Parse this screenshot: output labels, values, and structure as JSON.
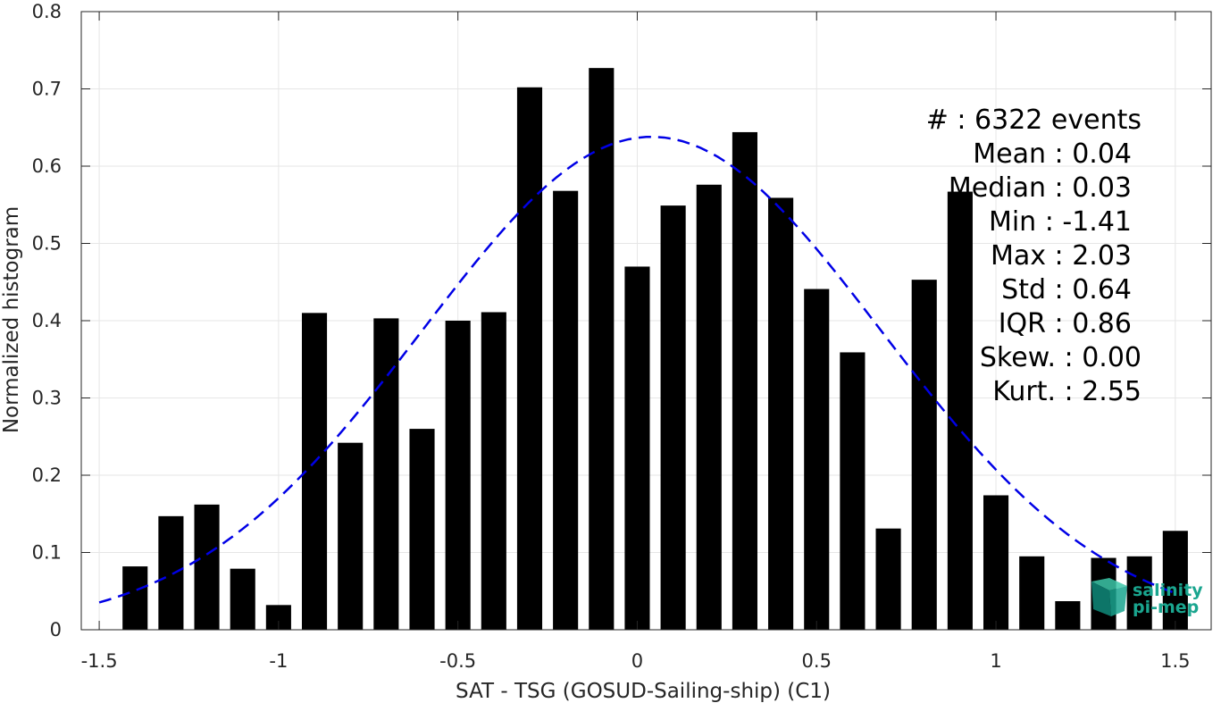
{
  "chart_data": {
    "type": "bar",
    "xlabel": "SAT - TSG (GOSUD-Sailing-ship) (C1)",
    "ylabel": "Normalized histogram",
    "xlim": [
      -1.55,
      1.6
    ],
    "ylim": [
      0,
      0.8
    ],
    "grid": true,
    "bar_width": 0.07,
    "x_ticks": [
      -1.5,
      -1,
      -0.5,
      0,
      0.5,
      1,
      1.5
    ],
    "x_tick_labels": [
      "-1.5",
      "-1",
      "-0.5",
      "0",
      "0.5",
      "1",
      "1.5"
    ],
    "y_ticks": [
      0,
      0.1,
      0.2,
      0.3,
      0.4,
      0.5,
      0.6,
      0.7,
      0.8
    ],
    "y_tick_labels": [
      "0",
      "0.1",
      "0.2",
      "0.3",
      "0.4",
      "0.5",
      "0.6",
      "0.7",
      "0.8"
    ],
    "bar_color": "#000000",
    "x": [
      -1.4,
      -1.3,
      -1.2,
      -1.1,
      -1.0,
      -0.9,
      -0.8,
      -0.7,
      -0.6,
      -0.5,
      -0.4,
      -0.3,
      -0.2,
      -0.1,
      0.0,
      0.1,
      0.2,
      0.3,
      0.4,
      0.5,
      0.6,
      0.7,
      0.8,
      0.9,
      1.0,
      1.1,
      1.2,
      1.3,
      1.4,
      1.5
    ],
    "values": [
      0.082,
      0.147,
      0.162,
      0.079,
      0.032,
      0.41,
      0.242,
      0.403,
      0.26,
      0.4,
      0.411,
      0.702,
      0.568,
      0.727,
      0.47,
      0.549,
      0.576,
      0.644,
      0.559,
      0.441,
      0.359,
      0.131,
      0.453,
      0.567,
      0.174,
      0.095,
      0.037,
      0.093,
      0.095,
      0.128
    ],
    "fit_curve": {
      "type": "normal",
      "mean": 0.04,
      "std": 0.64,
      "peak": 0.638,
      "x_range": [
        -1.5,
        1.5
      ],
      "color": "#0000e6",
      "style": "dashed"
    }
  },
  "stats": {
    "lines": [
      "#  : 6322 events",
      "Mean : 0.04",
      "Median : 0.03",
      "Min : -1.41",
      "Max : 2.03",
      "Std : 0.64",
      "IQR : 0.86",
      "Skew. : 0.00",
      "Kurt. : 2.55"
    ]
  },
  "logo": {
    "line1": "salinity",
    "line2": "pi-mep"
  }
}
